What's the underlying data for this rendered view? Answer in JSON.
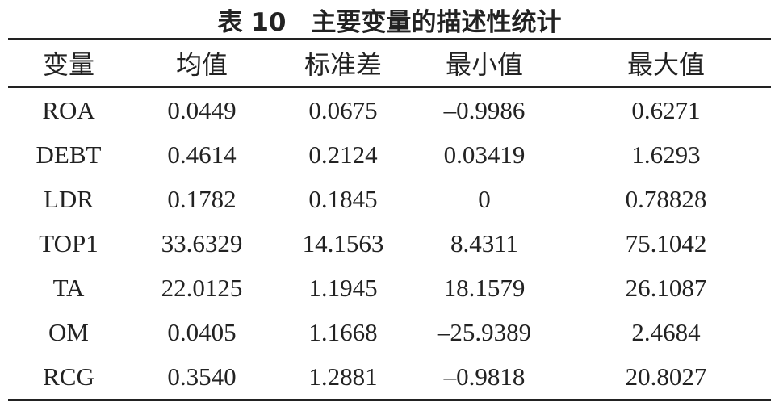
{
  "title": "表 10　主要变量的描述性统计",
  "table": {
    "header": [
      "变量",
      "均值",
      "标准差",
      "最小值",
      "最大值"
    ],
    "rows": [
      [
        "ROA",
        "0.0449",
        "0.0675",
        "–0.9986",
        "0.6271"
      ],
      [
        "DEBT",
        "0.4614",
        "0.2124",
        "0.03419",
        "1.6293"
      ],
      [
        "LDR",
        "0.1782",
        "0.1845",
        "0",
        "0.78828"
      ],
      [
        "TOP1",
        "33.6329",
        "14.1563",
        "8.4311",
        "75.1042"
      ],
      [
        "TA",
        "22.0125",
        "1.1945",
        "18.1579",
        "26.1087"
      ],
      [
        "OM",
        "0.0405",
        "1.1668",
        "–25.9389",
        "2.4684"
      ],
      [
        "RCG",
        "0.3540",
        "1.2881",
        "–0.9818",
        "20.8027"
      ]
    ]
  }
}
